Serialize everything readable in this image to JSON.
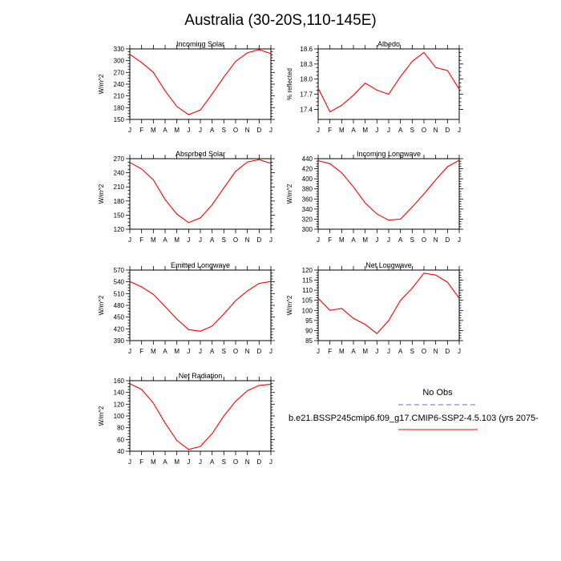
{
  "title": "Australia (30-20S,110-145E)",
  "colors": {
    "model": "#ff0000",
    "obs": "#6666ff"
  },
  "legend": {
    "obs_label": "No Obs",
    "case_label": "b.e21.BSSP245cmip6.f09_g17.CMIP6-SSP2-4.5.103 (yrs 2075-"
  },
  "chart_data": [
    {
      "type": "line",
      "title": "Incoming Solar",
      "ylabel": "W/m^2",
      "categories": [
        "J",
        "F",
        "M",
        "A",
        "M",
        "J",
        "J",
        "A",
        "S",
        "O",
        "N",
        "D",
        "J"
      ],
      "ylim": [
        150,
        330
      ],
      "yticks": [
        150,
        180,
        210,
        240,
        270,
        300,
        330
      ],
      "ytick_labels": [
        "150",
        "180",
        "210",
        "240",
        "270",
        "300",
        "330"
      ],
      "series": [
        {
          "values": [
            316,
            295,
            270,
            223,
            183,
            162,
            174,
            215,
            258,
            298,
            320,
            328,
            318
          ]
        }
      ]
    },
    {
      "type": "line",
      "title": "Albedo",
      "ylabel": "% reflected",
      "categories": [
        "J",
        "F",
        "M",
        "A",
        "M",
        "J",
        "J",
        "A",
        "S",
        "O",
        "N",
        "D",
        "J"
      ],
      "ylim": [
        17.2,
        18.6
      ],
      "yticks": [
        17.4,
        17.7,
        18.0,
        18.3,
        18.6
      ],
      "ytick_labels": [
        "17.4",
        "17.7",
        "18.0",
        "18.3",
        "18.6"
      ],
      "series": [
        {
          "values": [
            17.82,
            17.35,
            17.48,
            17.68,
            17.92,
            17.78,
            17.7,
            18.05,
            18.35,
            18.53,
            18.23,
            18.17,
            17.8
          ]
        }
      ]
    },
    {
      "type": "line",
      "title": "Absorbed Solar",
      "ylabel": "W/m^2",
      "categories": [
        "J",
        "F",
        "M",
        "A",
        "M",
        "J",
        "J",
        "A",
        "S",
        "O",
        "N",
        "D",
        "J"
      ],
      "ylim": [
        120,
        270
      ],
      "yticks": [
        120,
        150,
        180,
        210,
        240,
        270
      ],
      "ytick_labels": [
        "120",
        "150",
        "180",
        "210",
        "240",
        "270"
      ],
      "series": [
        {
          "values": [
            262,
            248,
            225,
            183,
            152,
            134,
            144,
            172,
            208,
            243,
            263,
            268,
            260
          ]
        }
      ]
    },
    {
      "type": "line",
      "title": "Incoming Longwave",
      "ylabel": "W/m^2",
      "categories": [
        "J",
        "F",
        "M",
        "A",
        "M",
        "J",
        "J",
        "A",
        "S",
        "O",
        "N",
        "D",
        "J"
      ],
      "ylim": [
        300,
        440
      ],
      "yticks": [
        300,
        320,
        340,
        360,
        380,
        400,
        420,
        440
      ],
      "ytick_labels": [
        "300",
        "320",
        "340",
        "360",
        "380",
        "400",
        "420",
        "440"
      ],
      "series": [
        {
          "values": [
            436,
            430,
            412,
            384,
            352,
            330,
            318,
            320,
            344,
            370,
            398,
            424,
            437
          ]
        }
      ]
    },
    {
      "type": "line",
      "title": "Emitted Longwave",
      "ylabel": "W/m^2",
      "categories": [
        "J",
        "F",
        "M",
        "A",
        "M",
        "J",
        "J",
        "A",
        "S",
        "O",
        "N",
        "D",
        "J"
      ],
      "ylim": [
        390,
        570
      ],
      "yticks": [
        390,
        420,
        450,
        480,
        510,
        540,
        570
      ],
      "ytick_labels": [
        "390",
        "420",
        "450",
        "480",
        "510",
        "540",
        "570"
      ],
      "series": [
        {
          "values": [
            541,
            527,
            508,
            477,
            445,
            418,
            414,
            427,
            458,
            492,
            517,
            536,
            541
          ]
        }
      ]
    },
    {
      "type": "line",
      "title": "Net Longwave",
      "ylabel": "W/m^2",
      "categories": [
        "J",
        "F",
        "M",
        "A",
        "M",
        "J",
        "J",
        "A",
        "S",
        "O",
        "N",
        "D",
        "J"
      ],
      "ylim": [
        85,
        120
      ],
      "yticks": [
        85,
        90,
        95,
        100,
        105,
        110,
        115,
        120
      ],
      "ytick_labels": [
        "85",
        "90",
        "95",
        "100",
        "105",
        "110",
        "115",
        "120"
      ],
      "series": [
        {
          "values": [
            106,
            100,
            101,
            96,
            93,
            88.5,
            95,
            105,
            111,
            118.5,
            117.5,
            114,
            106
          ]
        }
      ]
    },
    {
      "type": "line",
      "title": "Net Radiation",
      "ylabel": "W/m^2",
      "categories": [
        "J",
        "F",
        "M",
        "A",
        "M",
        "J",
        "J",
        "A",
        "S",
        "O",
        "N",
        "D",
        "J"
      ],
      "ylim": [
        40,
        160
      ],
      "yticks": [
        40,
        60,
        80,
        100,
        120,
        140,
        160
      ],
      "ytick_labels": [
        "40",
        "60",
        "80",
        "100",
        "120",
        "140",
        "160"
      ],
      "series": [
        {
          "values": [
            155,
            145,
            122,
            88,
            58,
            43,
            48,
            70,
            100,
            125,
            143,
            152,
            154
          ]
        }
      ]
    }
  ]
}
